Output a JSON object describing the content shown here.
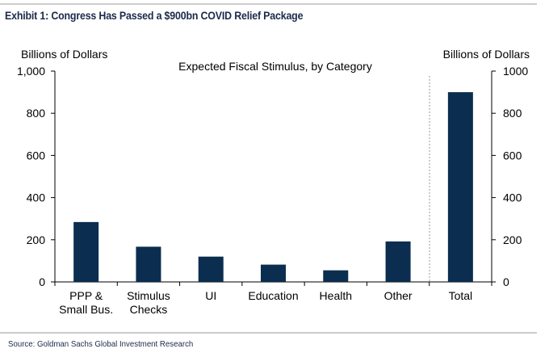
{
  "exhibit_title": "Exhibit 1: Congress Has Passed a $900bn COVID Relief Package",
  "source": "Source: Goldman Sachs Global Investment Research",
  "colors": {
    "bar": "#0b2d4f",
    "rule": "#9a9a9a",
    "axis": "#000000",
    "divider": "#999999"
  },
  "chart_data": {
    "type": "bar",
    "title": "Expected Fiscal Stimulus, by Category",
    "ylabel_left": "Billions of Dollars",
    "ylabel_right": "Billions of Dollars",
    "categories": [
      [
        "PPP &",
        "Small Bus."
      ],
      [
        "Stimulus",
        "Checks"
      ],
      [
        "UI"
      ],
      [
        "Education"
      ],
      [
        "Health"
      ],
      [
        "Other"
      ],
      [
        "Total"
      ]
    ],
    "values": [
      284,
      167,
      120,
      82,
      55,
      192,
      900
    ],
    "ylim": [
      0,
      1000
    ],
    "left_ticks": [
      "0",
      "200",
      "400",
      "600",
      "800",
      "1,000"
    ],
    "right_ticks": [
      "0",
      "200",
      "400",
      "600",
      "800",
      "1000"
    ],
    "tick_values": [
      0,
      200,
      400,
      600,
      800,
      1000
    ],
    "divider_before_last": true,
    "grid": false
  }
}
